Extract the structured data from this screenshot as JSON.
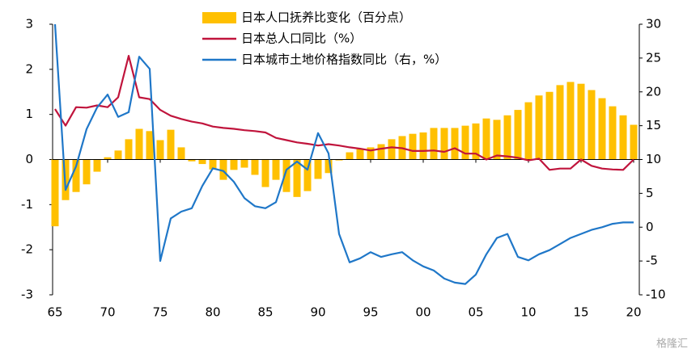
{
  "chart_data": {
    "type": "bar-line-dual",
    "legend": "top",
    "x": [
      1965,
      1966,
      1967,
      1968,
      1969,
      1970,
      1971,
      1972,
      1973,
      1974,
      1975,
      1976,
      1977,
      1978,
      1979,
      1980,
      1981,
      1982,
      1983,
      1984,
      1985,
      1986,
      1987,
      1988,
      1989,
      1990,
      1991,
      1992,
      1993,
      1994,
      1995,
      1996,
      1997,
      1998,
      1999,
      2000,
      2001,
      2002,
      2003,
      2004,
      2005,
      2006,
      2007,
      2008,
      2009,
      2010,
      2011,
      2012,
      2013,
      2014,
      2015,
      2016,
      2017,
      2018,
      2019,
      2020
    ],
    "xlim": [
      1965,
      2020
    ],
    "xticks": [
      {
        "value": 1965,
        "label": "65"
      },
      {
        "value": 1970,
        "label": "70"
      },
      {
        "value": 1975,
        "label": "75"
      },
      {
        "value": 1980,
        "label": "80"
      },
      {
        "value": 1985,
        "label": "85"
      },
      {
        "value": 1990,
        "label": "90"
      },
      {
        "value": 1995,
        "label": "95"
      },
      {
        "value": 2000,
        "label": "00"
      },
      {
        "value": 2005,
        "label": "05"
      },
      {
        "value": 2010,
        "label": "10"
      },
      {
        "value": 2015,
        "label": "15"
      },
      {
        "value": 2020,
        "label": "20"
      }
    ],
    "ylim": [
      -3,
      3
    ],
    "yticks": [
      3,
      2,
      1,
      0,
      -1,
      -2,
      -3
    ],
    "y2lim": [
      -10,
      30
    ],
    "y2ticks": [
      30,
      25,
      20,
      15,
      10,
      5,
      0,
      -5,
      -10
    ],
    "series": [
      {
        "name": "日本人口抚养比变化（百分点）",
        "kind": "bar",
        "color": "#FFC000",
        "values": [
          -1.48,
          -0.9,
          -0.72,
          -0.55,
          -0.27,
          0.05,
          0.2,
          0.45,
          0.68,
          0.63,
          0.43,
          0.66,
          0.27,
          -0.04,
          -0.1,
          -0.22,
          -0.45,
          -0.23,
          -0.18,
          -0.34,
          -0.61,
          -0.45,
          -0.72,
          -0.83,
          -0.7,
          -0.43,
          -0.3,
          -0.02,
          0.16,
          0.23,
          0.27,
          0.34,
          0.45,
          0.52,
          0.57,
          0.6,
          0.7,
          0.7,
          0.7,
          0.75,
          0.8,
          0.91,
          0.88,
          0.98,
          1.1,
          1.27,
          1.42,
          1.5,
          1.65,
          1.72,
          1.68,
          1.54,
          1.36,
          1.18,
          0.98,
          0.77
        ]
      },
      {
        "name": "日本总人口同比（%）",
        "kind": "line",
        "color": "#C0143C",
        "values": [
          1.12,
          0.75,
          1.16,
          1.15,
          1.2,
          1.16,
          1.38,
          2.3,
          1.38,
          1.34,
          1.1,
          0.97,
          0.9,
          0.84,
          0.8,
          0.73,
          0.7,
          0.68,
          0.65,
          0.63,
          0.6,
          0.48,
          0.43,
          0.38,
          0.35,
          0.31,
          0.34,
          0.31,
          0.27,
          0.24,
          0.2,
          0.24,
          0.27,
          0.25,
          0.19,
          0.19,
          0.2,
          0.17,
          0.25,
          0.13,
          0.13,
          0,
          0.09,
          0.07,
          0.04,
          -0.02,
          0.02,
          -0.23,
          -0.2,
          -0.2,
          0,
          -0.14,
          -0.2,
          -0.22,
          -0.23,
          0
        ]
      },
      {
        "name": "日本城市土地价格指数同比（右，%）",
        "kind": "line",
        "axis": "y2",
        "color": "#1F77C8",
        "values": [
          30,
          5.5,
          9,
          14.5,
          17.7,
          19.6,
          16.3,
          17,
          25.2,
          23.4,
          -5,
          1.3,
          2.3,
          2.8,
          6.1,
          8.7,
          8.3,
          6.7,
          4.3,
          3.1,
          2.8,
          3.7,
          8.5,
          9.7,
          8.5,
          13.9,
          10.9,
          -1,
          -5.2,
          -4.6,
          -3.7,
          -4.4,
          -4,
          -3.7,
          -4.9,
          -5.8,
          -6.4,
          -7.6,
          -8.2,
          -8.4,
          -7,
          -4,
          -1.6,
          -1,
          -4.4,
          -4.9,
          -4,
          -3.4,
          -2.5,
          -1.6,
          -1,
          -0.4,
          0,
          0.5,
          0.7,
          0.7
        ]
      }
    ],
    "watermark": "格隆汇"
  }
}
